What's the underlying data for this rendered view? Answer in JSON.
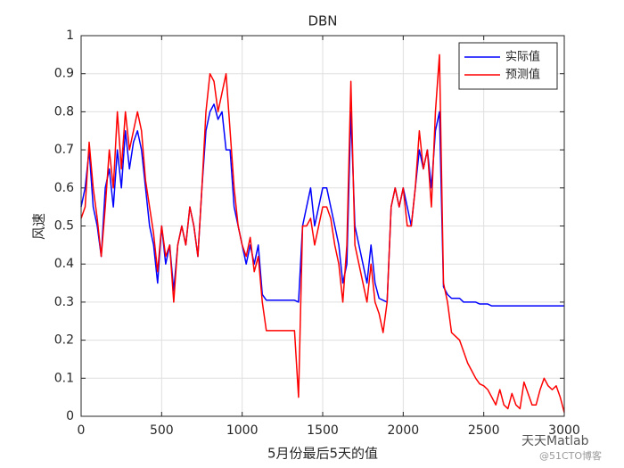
{
  "chart_data": {
    "type": "line",
    "title": "DBN",
    "xlabel": "5月份最后5天的值",
    "ylabel": "风速",
    "x": [
      0,
      25,
      50,
      75,
      100,
      125,
      150,
      175,
      200,
      225,
      250,
      275,
      300,
      325,
      350,
      375,
      400,
      425,
      450,
      475,
      500,
      525,
      550,
      575,
      600,
      625,
      650,
      675,
      700,
      725,
      750,
      775,
      800,
      825,
      850,
      875,
      900,
      925,
      950,
      975,
      1000,
      1025,
      1050,
      1075,
      1100,
      1125,
      1150,
      1175,
      1200,
      1225,
      1250,
      1275,
      1300,
      1325,
      1350,
      1375,
      1400,
      1425,
      1450,
      1475,
      1500,
      1525,
      1550,
      1575,
      1600,
      1625,
      1650,
      1675,
      1700,
      1725,
      1750,
      1775,
      1800,
      1825,
      1850,
      1875,
      1900,
      1925,
      1950,
      1975,
      2000,
      2025,
      2050,
      2075,
      2100,
      2125,
      2150,
      2175,
      2200,
      2225,
      2250,
      2275,
      2300,
      2325,
      2350,
      2375,
      2400,
      2425,
      2450,
      2475,
      2500,
      2525,
      2550,
      2575,
      2600,
      2625,
      2650,
      2675,
      2700,
      2725,
      2750,
      2775,
      2800,
      2825,
      2850,
      2875,
      2900,
      2925,
      2950,
      2975,
      3000
    ],
    "series": [
      {
        "name": "实际值",
        "color": "#0000ff",
        "values": [
          0.55,
          0.6,
          0.7,
          0.55,
          0.5,
          0.42,
          0.6,
          0.65,
          0.55,
          0.7,
          0.6,
          0.75,
          0.65,
          0.72,
          0.75,
          0.7,
          0.6,
          0.5,
          0.45,
          0.35,
          0.5,
          0.4,
          0.45,
          0.33,
          0.45,
          0.5,
          0.45,
          0.55,
          0.5,
          0.42,
          0.6,
          0.75,
          0.8,
          0.82,
          0.78,
          0.8,
          0.7,
          0.7,
          0.55,
          0.5,
          0.45,
          0.4,
          0.45,
          0.4,
          0.45,
          0.32,
          0.305,
          0.305,
          0.305,
          0.305,
          0.305,
          0.305,
          0.305,
          0.305,
          0.3,
          0.5,
          0.55,
          0.6,
          0.5,
          0.55,
          0.6,
          0.6,
          0.55,
          0.5,
          0.45,
          0.35,
          0.4,
          0.8,
          0.5,
          0.45,
          0.4,
          0.35,
          0.45,
          0.35,
          0.31,
          0.305,
          0.3,
          0.55,
          0.6,
          0.55,
          0.6,
          0.55,
          0.5,
          0.6,
          0.7,
          0.65,
          0.7,
          0.6,
          0.75,
          0.8,
          0.34,
          0.32,
          0.31,
          0.31,
          0.31,
          0.3,
          0.3,
          0.3,
          0.3,
          0.295,
          0.295,
          0.295,
          0.29,
          0.29,
          0.29,
          0.29,
          0.29,
          0.29,
          0.29,
          0.29,
          0.29,
          0.29,
          0.29,
          0.29,
          0.29,
          0.29,
          0.29,
          0.29,
          0.29,
          0.29,
          0.29
        ]
      },
      {
        "name": "预测值",
        "color": "#ff0000",
        "values": [
          0.52,
          0.55,
          0.72,
          0.6,
          0.52,
          0.42,
          0.55,
          0.7,
          0.6,
          0.8,
          0.65,
          0.8,
          0.7,
          0.75,
          0.8,
          0.75,
          0.62,
          0.55,
          0.48,
          0.38,
          0.5,
          0.42,
          0.45,
          0.3,
          0.45,
          0.5,
          0.45,
          0.55,
          0.5,
          0.42,
          0.6,
          0.8,
          0.9,
          0.88,
          0.8,
          0.85,
          0.9,
          0.75,
          0.6,
          0.5,
          0.45,
          0.42,
          0.47,
          0.38,
          0.42,
          0.3,
          0.225,
          0.225,
          0.225,
          0.225,
          0.225,
          0.225,
          0.225,
          0.225,
          0.05,
          0.5,
          0.5,
          0.52,
          0.45,
          0.5,
          0.55,
          0.55,
          0.52,
          0.45,
          0.4,
          0.3,
          0.45,
          0.88,
          0.45,
          0.4,
          0.35,
          0.3,
          0.4,
          0.3,
          0.27,
          0.22,
          0.3,
          0.55,
          0.6,
          0.55,
          0.6,
          0.5,
          0.5,
          0.6,
          0.75,
          0.65,
          0.7,
          0.55,
          0.8,
          0.95,
          0.35,
          0.3,
          0.22,
          0.21,
          0.2,
          0.17,
          0.14,
          0.12,
          0.1,
          0.085,
          0.08,
          0.07,
          0.05,
          0.03,
          0.07,
          0.03,
          0.02,
          0.06,
          0.03,
          0.02,
          0.09,
          0.06,
          0.03,
          0.03,
          0.07,
          0.1,
          0.08,
          0.07,
          0.08,
          0.05,
          0.01
        ]
      }
    ],
    "xlim": [
      0,
      3000
    ],
    "xticks": [
      0,
      500,
      1000,
      1500,
      2000,
      2500,
      3000
    ],
    "ylim": [
      0,
      1
    ],
    "yticks": [
      0,
      0.1,
      0.2,
      0.3,
      0.4,
      0.5,
      0.6,
      0.7,
      0.8,
      0.9,
      1
    ],
    "grid": true,
    "legend": "northeast"
  },
  "watermark": {
    "name": "天天Matlab",
    "source": "@51CTO博客"
  }
}
